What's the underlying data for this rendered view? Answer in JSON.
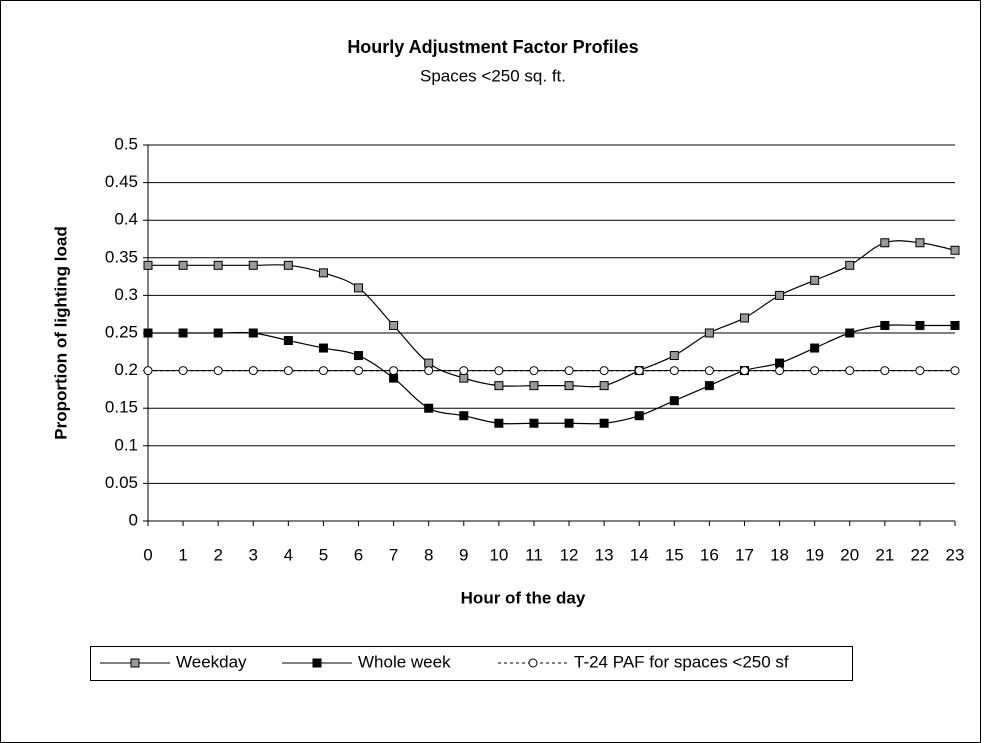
{
  "chart_data": {
    "type": "line",
    "title": "Hourly Adjustment Factor Profiles",
    "subtitle": "Spaces <250 sq. ft.",
    "x_label": "Hour of the day",
    "y_label": "Proportion of lighting load",
    "categories": [
      "0",
      "1",
      "2",
      "3",
      "4",
      "5",
      "6",
      "7",
      "8",
      "9",
      "10",
      "11",
      "12",
      "13",
      "14",
      "15",
      "16",
      "17",
      "18",
      "19",
      "20",
      "21",
      "22",
      "23"
    ],
    "series": [
      {
        "name": "Weekday",
        "color": "#999999",
        "marker": "square",
        "dash": "solid",
        "values": [
          0.34,
          0.34,
          0.34,
          0.34,
          0.34,
          0.33,
          0.31,
          0.26,
          0.21,
          0.19,
          0.18,
          0.18,
          0.18,
          0.18,
          0.2,
          0.22,
          0.25,
          0.27,
          0.3,
          0.32,
          0.34,
          0.37,
          0.37,
          0.36
        ]
      },
      {
        "name": "Whole week",
        "color": "#000000",
        "marker": "square",
        "dash": "solid",
        "values": [
          0.25,
          0.25,
          0.25,
          0.25,
          0.24,
          0.23,
          0.22,
          0.19,
          0.15,
          0.14,
          0.13,
          0.13,
          0.13,
          0.13,
          0.14,
          0.16,
          0.18,
          0.2,
          0.21,
          0.23,
          0.25,
          0.26,
          0.26,
          0.26
        ]
      },
      {
        "name": "T-24 PAF for spaces <250 sf",
        "color": "#ffffff",
        "marker": "circle",
        "dash": "dotted",
        "values": [
          0.2,
          0.2,
          0.2,
          0.2,
          0.2,
          0.2,
          0.2,
          0.2,
          0.2,
          0.2,
          0.2,
          0.2,
          0.2,
          0.2,
          0.2,
          0.2,
          0.2,
          0.2,
          0.2,
          0.2,
          0.2,
          0.2,
          0.2,
          0.2
        ]
      }
    ],
    "ylim": [
      0,
      0.5
    ],
    "yticks": [
      0,
      0.05,
      0.1,
      0.15,
      0.2,
      0.25,
      0.3,
      0.35,
      0.4,
      0.45,
      0.5
    ],
    "grid": true,
    "legend": "bottom"
  }
}
